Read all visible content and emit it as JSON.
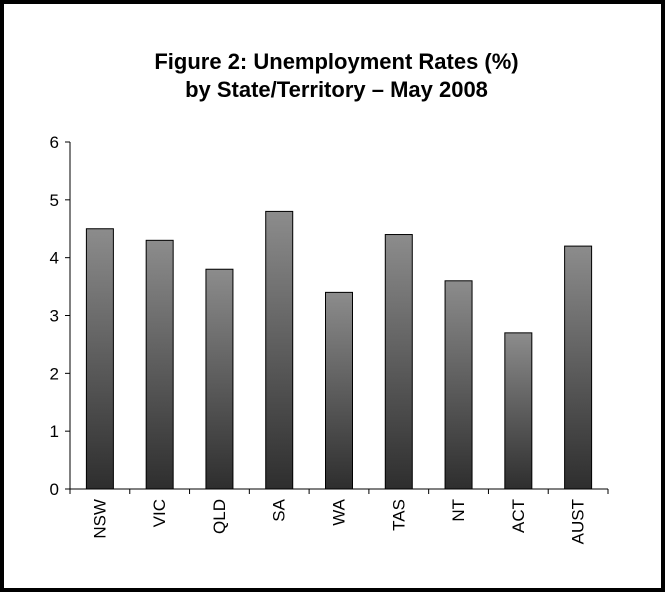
{
  "chart_data": {
    "type": "bar",
    "title_lines": [
      "Figure 2: Unemployment Rates (%)",
      "by State/Territory – May 2008"
    ],
    "categories": [
      "NSW",
      "VIC",
      "QLD",
      "SA",
      "WA",
      "TAS",
      "NT",
      "ACT",
      "AUST"
    ],
    "values": [
      4.5,
      4.3,
      3.8,
      4.8,
      3.4,
      4.4,
      3.6,
      2.7,
      4.2
    ],
    "ylim": [
      0,
      6
    ],
    "yticks": [
      0,
      1,
      2,
      3,
      4,
      5,
      6
    ],
    "grid": false,
    "legend": "none",
    "bar_gradient": [
      "#8c8c8c",
      "#2e2e2e"
    ]
  }
}
